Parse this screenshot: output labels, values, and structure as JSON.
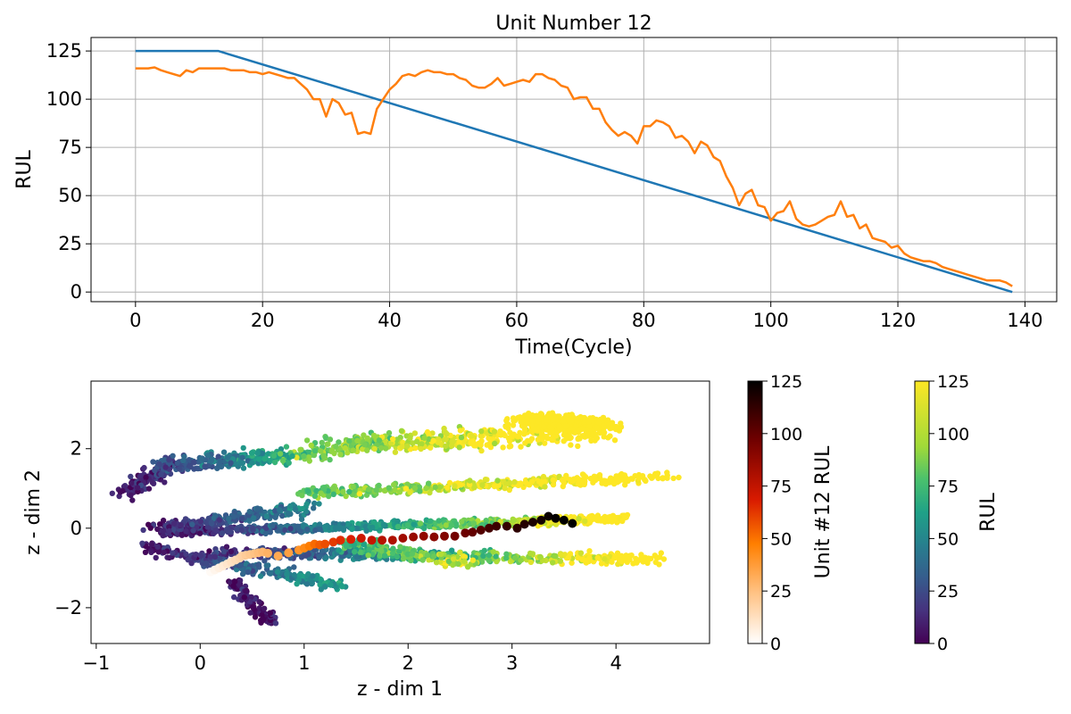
{
  "chart_data": [
    {
      "type": "line",
      "title": "Unit Number 12",
      "xlabel": "Time(Cycle)",
      "ylabel": "RUL",
      "xlim": [
        -7,
        145
      ],
      "ylim": [
        -5,
        132
      ],
      "x_ticks": [
        0,
        20,
        40,
        60,
        80,
        100,
        120,
        140
      ],
      "y_ticks": [
        0,
        25,
        50,
        75,
        100,
        125
      ],
      "grid": true,
      "colors": {
        "true": "#1f77b4",
        "predicted": "#ff7f0e"
      },
      "series": [
        {
          "key": "true",
          "x": [
            0,
            13,
            138
          ],
          "y": [
            125,
            125,
            0
          ]
        },
        {
          "key": "predicted",
          "x": [
            0,
            1,
            2,
            3,
            4,
            5,
            6,
            7,
            8,
            9,
            10,
            11,
            12,
            13,
            14,
            15,
            16,
            17,
            18,
            19,
            20,
            21,
            22,
            23,
            24,
            25,
            26,
            27,
            28,
            29,
            30,
            31,
            32,
            33,
            34,
            35,
            36,
            37,
            38,
            39,
            40,
            41,
            42,
            43,
            44,
            45,
            46,
            47,
            48,
            49,
            50,
            51,
            52,
            53,
            54,
            55,
            56,
            57,
            58,
            59,
            60,
            61,
            62,
            63,
            64,
            65,
            66,
            67,
            68,
            69,
            70,
            71,
            72,
            73,
            74,
            75,
            76,
            77,
            78,
            79,
            80,
            81,
            82,
            83,
            84,
            85,
            86,
            87,
            88,
            89,
            90,
            91,
            92,
            93,
            94,
            95,
            96,
            97,
            98,
            99,
            100,
            101,
            102,
            103,
            104,
            105,
            106,
            107,
            108,
            109,
            110,
            111,
            112,
            113,
            114,
            115,
            116,
            117,
            118,
            119,
            120,
            121,
            122,
            123,
            124,
            125,
            126,
            127,
            128,
            129,
            130,
            131,
            132,
            133,
            134,
            135,
            136,
            137,
            138
          ],
          "y": [
            116,
            116,
            116,
            116.5,
            115,
            114,
            113,
            112,
            115,
            114,
            116,
            116,
            116,
            116,
            116,
            115,
            115,
            115,
            114,
            114,
            113,
            114,
            113,
            112,
            111,
            111,
            108,
            105,
            100,
            100,
            91,
            100,
            98,
            92,
            93,
            82,
            83,
            82,
            95,
            100,
            105,
            108,
            112,
            113,
            112,
            114,
            115,
            114,
            114,
            113,
            113,
            111,
            110,
            107,
            106,
            106,
            108,
            111,
            107,
            108,
            109,
            110,
            109,
            113,
            113,
            111,
            110,
            107,
            106,
            100,
            101,
            101,
            95,
            95,
            88,
            84,
            81,
            83,
            81,
            77,
            86,
            86,
            89,
            88,
            86,
            80,
            81,
            78,
            72,
            78,
            76,
            70,
            68,
            60,
            54,
            45,
            51,
            53,
            45,
            44,
            37,
            41,
            42,
            47,
            38,
            35,
            34,
            35,
            37,
            39,
            40,
            47,
            39,
            40,
            33,
            35,
            28,
            27,
            26,
            23,
            24,
            20,
            18,
            17,
            16,
            16,
            15,
            13,
            12,
            11,
            10,
            9,
            8,
            7,
            6,
            6,
            6,
            5,
            3
          ]
        }
      ]
    },
    {
      "type": "scatter",
      "xlabel": "z - dim 1",
      "ylabel": "z - dim 2",
      "xlim": [
        -1.05,
        4.9
      ],
      "ylim": [
        -2.9,
        3.7
      ],
      "x_ticks": [
        -1,
        0,
        1,
        2,
        3,
        4
      ],
      "y_ticks": [
        -2,
        0,
        2
      ],
      "grid": false,
      "colorbars": [
        {
          "label": "Unit #12 RUL",
          "colormap": "gist_heat_r",
          "range": [
            0,
            125
          ],
          "ticks": [
            0,
            25,
            50,
            75,
            100,
            125
          ]
        },
        {
          "label": "RUL",
          "colormap": "viridis",
          "range": [
            0,
            125
          ],
          "ticks": [
            0,
            25,
            50,
            75,
            100,
            125
          ]
        }
      ],
      "unit12_trajectory": {
        "points": [
          [
            0.1,
            -1.1,
            2
          ],
          [
            0.14,
            -1.05,
            4
          ],
          [
            0.18,
            -1.0,
            6
          ],
          [
            0.22,
            -0.95,
            8
          ],
          [
            0.26,
            -0.9,
            10
          ],
          [
            0.3,
            -0.85,
            12
          ],
          [
            0.34,
            -0.8,
            14
          ],
          [
            0.38,
            -0.75,
            16
          ],
          [
            0.4,
            -0.7,
            18
          ],
          [
            0.44,
            -0.68,
            20
          ],
          [
            0.48,
            -0.66,
            22
          ],
          [
            0.52,
            -0.64,
            24
          ],
          [
            0.56,
            -0.62,
            26
          ],
          [
            0.6,
            -0.6,
            28
          ],
          [
            0.65,
            -0.63,
            30
          ],
          [
            0.75,
            -0.7,
            33
          ],
          [
            0.85,
            -0.62,
            36
          ],
          [
            0.95,
            -0.55,
            40
          ],
          [
            1.0,
            -0.5,
            44
          ],
          [
            1.05,
            -0.45,
            48
          ],
          [
            1.1,
            -0.4,
            52
          ],
          [
            1.15,
            -0.42,
            55
          ],
          [
            1.2,
            -0.4,
            58
          ],
          [
            1.28,
            -0.35,
            62
          ],
          [
            1.35,
            -0.3,
            65
          ],
          [
            1.45,
            -0.28,
            68
          ],
          [
            1.55,
            -0.25,
            72
          ],
          [
            1.65,
            -0.3,
            74
          ],
          [
            1.75,
            -0.3,
            78
          ],
          [
            1.85,
            -0.3,
            80
          ],
          [
            1.95,
            -0.25,
            84
          ],
          [
            2.05,
            -0.22,
            86
          ],
          [
            2.15,
            -0.2,
            88
          ],
          [
            2.25,
            -0.22,
            90
          ],
          [
            2.35,
            -0.2,
            92
          ],
          [
            2.45,
            -0.2,
            96
          ],
          [
            2.55,
            -0.12,
            98
          ],
          [
            2.62,
            -0.1,
            100
          ],
          [
            2.7,
            -0.05,
            104
          ],
          [
            2.78,
            0.0,
            108
          ],
          [
            2.85,
            0.05,
            110
          ],
          [
            2.95,
            0.05,
            112
          ],
          [
            3.05,
            0.0,
            114
          ],
          [
            3.12,
            0.1,
            116
          ],
          [
            3.2,
            0.15,
            118
          ],
          [
            3.28,
            0.2,
            120
          ],
          [
            3.35,
            0.3,
            122
          ],
          [
            3.42,
            0.25,
            124
          ],
          [
            3.5,
            0.2,
            125
          ],
          [
            3.58,
            0.12,
            125
          ]
        ]
      }
    }
  ]
}
